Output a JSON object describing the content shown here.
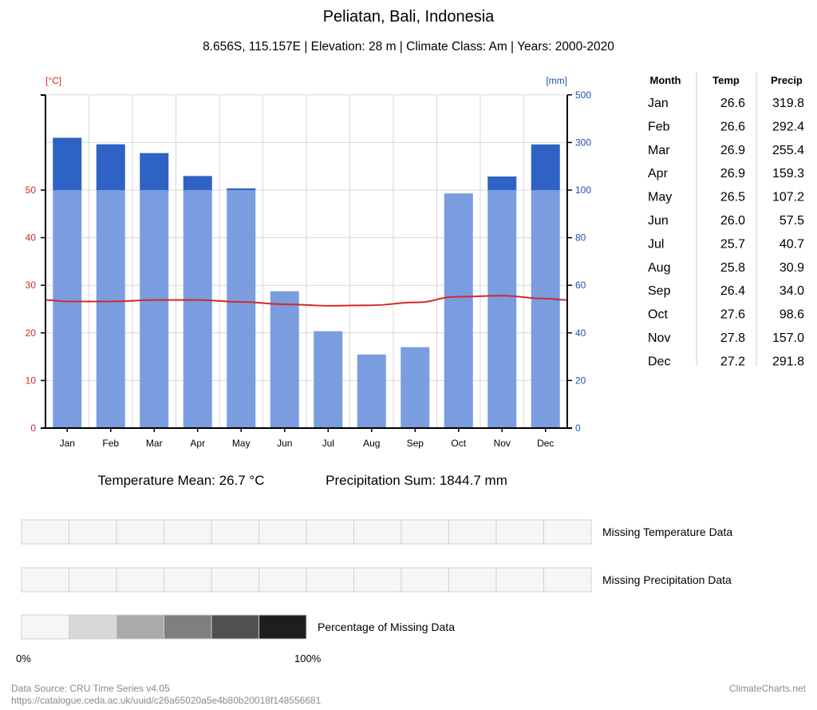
{
  "chart_data": {
    "type": "climate-diagram",
    "title": "Peliatan, Bali, Indonesia",
    "subtitle": "8.656S, 115.157E | Elevation: 28 m | Climate Class: Am | Years: 2000-2020",
    "temp_unit_label": "[°C]",
    "precip_unit_label": "[mm]",
    "months": [
      "Jan",
      "Feb",
      "Mar",
      "Apr",
      "May",
      "Jun",
      "Jul",
      "Aug",
      "Sep",
      "Oct",
      "Nov",
      "Dec"
    ],
    "temperature": [
      26.6,
      26.6,
      26.9,
      26.9,
      26.5,
      26.0,
      25.7,
      25.8,
      26.4,
      27.6,
      27.8,
      27.2
    ],
    "precipitation": [
      319.8,
      292.4,
      255.4,
      159.3,
      107.2,
      57.5,
      40.7,
      30.9,
      34.0,
      98.6,
      157.0,
      291.8
    ],
    "temp_axis": {
      "min": 0,
      "max": 70,
      "ticks": [
        0,
        10,
        20,
        30,
        40,
        50
      ]
    },
    "precip_axis": {
      "min": 0,
      "max": 500,
      "ticks": [
        0,
        20,
        40,
        60,
        80,
        100,
        300,
        500
      ],
      "scale": "climate-diagram"
    },
    "colors": {
      "temp_line": "#d62728",
      "temp_axis": "#d62728",
      "precip_axis": "#1f4fb5",
      "precip_bar": "#7a9ddf",
      "precip_bar_excess": "#2f62c5",
      "grid": "#d7d7d7",
      "missing_cell": "#f6f6f6"
    },
    "table": {
      "headers": [
        "Month",
        "Temp",
        "Precip"
      ],
      "rows": [
        [
          "Jan",
          "26.6",
          "319.8"
        ],
        [
          "Feb",
          "26.6",
          "292.4"
        ],
        [
          "Mar",
          "26.9",
          "255.4"
        ],
        [
          "Apr",
          "26.9",
          "159.3"
        ],
        [
          "May",
          "26.5",
          "107.2"
        ],
        [
          "Jun",
          "26.0",
          "57.5"
        ],
        [
          "Jul",
          "25.7",
          "40.7"
        ],
        [
          "Aug",
          "25.8",
          "30.9"
        ],
        [
          "Sep",
          "26.4",
          "34.0"
        ],
        [
          "Oct",
          "27.6",
          "98.6"
        ],
        [
          "Nov",
          "27.8",
          "157.0"
        ],
        [
          "Dec",
          "27.2",
          "291.8"
        ]
      ]
    },
    "summary": {
      "temp_mean": "Temperature Mean: 26.7 °C",
      "precip_sum": "Precipitation Sum: 1844.7 mm"
    },
    "missing": {
      "temp_label": "Missing Temperature Data",
      "precip_label": "Missing Precipitation Data",
      "temp_values": [
        0,
        0,
        0,
        0,
        0,
        0,
        0,
        0,
        0,
        0,
        0,
        0
      ],
      "precip_values": [
        0,
        0,
        0,
        0,
        0,
        0,
        0,
        0,
        0,
        0,
        0,
        0
      ],
      "legend_label": "Percentage of Missing Data",
      "legend_colors": [
        "#f6f6f6",
        "#d8d8d8",
        "#aaaaaa",
        "#7f7f7f",
        "#505050",
        "#1e1e1e"
      ],
      "legend_min": "0%",
      "legend_max": "100%"
    },
    "footer": {
      "source": "Data Source: CRU Time Series v4.05",
      "url": "https://catalogue.ceda.ac.uk/uuid/c26a65020a5e4b80b20018f148556681",
      "brand": "ClimateCharts.net"
    }
  }
}
